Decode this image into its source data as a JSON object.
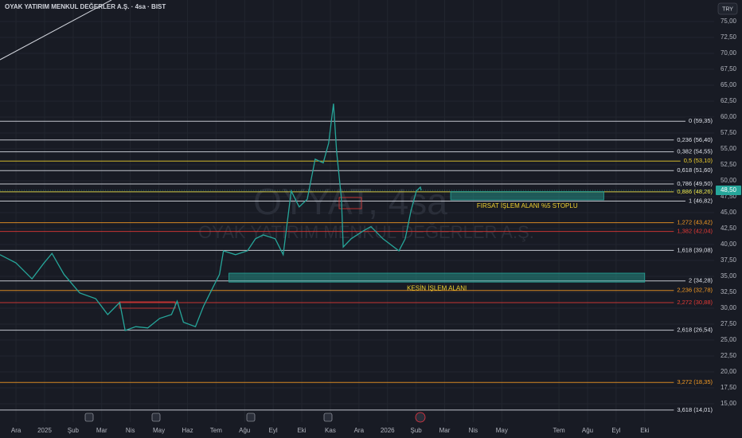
{
  "chart_data": {
    "type": "line",
    "title": "OYAK YATIRIM MENKUL DEĞERLER A.Ş. · 4sa · BIST",
    "currency": "TRY",
    "watermark": [
      "OYYAT, 4sa",
      "OYAK YATIRIM MENKUL DEĞERLER A.Ş."
    ],
    "xlim": [
      -0.56,
      24.43
    ],
    "ylim": [
      12.125,
      78.375
    ],
    "xticks": [
      {
        "value": 0,
        "label": "Ara"
      },
      {
        "value": 1,
        "label": "2025"
      },
      {
        "value": 2,
        "label": "Şub"
      },
      {
        "value": 3,
        "label": "Mar"
      },
      {
        "value": 4,
        "label": "Nis"
      },
      {
        "value": 5,
        "label": "May"
      },
      {
        "value": 6,
        "label": "Haz"
      },
      {
        "value": 7,
        "label": "Tem"
      },
      {
        "value": 8,
        "label": "Ağu"
      },
      {
        "value": 9,
        "label": "Eyl"
      },
      {
        "value": 10,
        "label": "Eki"
      },
      {
        "value": 11,
        "label": "Kas"
      },
      {
        "value": 12,
        "label": "Ara"
      },
      {
        "value": 13,
        "label": "2026"
      },
      {
        "value": 14,
        "label": "Şub"
      },
      {
        "value": 15,
        "label": "Mar"
      },
      {
        "value": 16,
        "label": "Nis"
      },
      {
        "value": 17,
        "label": "May"
      },
      {
        "value": 19,
        "label": "Tem"
      },
      {
        "value": 20,
        "label": "Ağu"
      },
      {
        "value": 21,
        "label": "Eyl"
      },
      {
        "value": 22,
        "label": "Eki"
      }
    ],
    "yticks": [
      {
        "value": 75,
        "label": "75,00"
      },
      {
        "value": 72.5,
        "label": "72,50"
      },
      {
        "value": 70,
        "label": "70,00"
      },
      {
        "value": 67.5,
        "label": "67,50"
      },
      {
        "value": 65,
        "label": "65,00"
      },
      {
        "value": 62.5,
        "label": "62,50"
      },
      {
        "value": 60,
        "label": "60,00"
      },
      {
        "value": 57.5,
        "label": "57,50"
      },
      {
        "value": 55,
        "label": "55,00"
      },
      {
        "value": 52.5,
        "label": "52,50"
      },
      {
        "value": 50,
        "label": "50,00"
      },
      {
        "value": 47.5,
        "label": "47,50"
      },
      {
        "value": 45,
        "label": "45,00"
      },
      {
        "value": 42.5,
        "label": "42,50"
      },
      {
        "value": 40,
        "label": "40,00"
      },
      {
        "value": 37.5,
        "label": "37,50"
      },
      {
        "value": 35,
        "label": "35,00"
      },
      {
        "value": 32.5,
        "label": "32,50"
      },
      {
        "value": 30,
        "label": "30,00"
      },
      {
        "value": 27.5,
        "label": "27,50"
      },
      {
        "value": 25,
        "label": "25,00"
      },
      {
        "value": 22.5,
        "label": "22,50"
      },
      {
        "value": 20,
        "label": "20,00"
      },
      {
        "value": 17.5,
        "label": "17,50"
      },
      {
        "value": 15,
        "label": "15,00"
      }
    ],
    "grid": true,
    "series": [
      {
        "name": "OYYAT",
        "color": "#26a69a",
        "x": [
          -0.56,
          0,
          0.56,
          0.98,
          1.26,
          1.68,
          2.23,
          2.79,
          3.21,
          3.63,
          3.82,
          4.19,
          4.61,
          5.03,
          5.44,
          5.64,
          5.86,
          6.28,
          6.56,
          6.84,
          7.12,
          7.26,
          7.68,
          8.1,
          8.38,
          8.65,
          9.07,
          9.35,
          9.63,
          9.91,
          10.19,
          10.47,
          10.75,
          10.94,
          11.11,
          11.22,
          11.39,
          11.45,
          11.73,
          12.14,
          12.42,
          12.84,
          13.4,
          13.62,
          13.82,
          14.01,
          14.15,
          14.18
        ],
        "values": [
          38.4,
          37.1,
          34.6,
          37.1,
          38.6,
          35.3,
          32.4,
          31.5,
          29.0,
          30.9,
          26.5,
          27.1,
          26.9,
          28.4,
          29.0,
          31.1,
          27.8,
          27.1,
          30.3,
          32.8,
          35.3,
          39.0,
          38.4,
          39.0,
          40.9,
          41.5,
          40.9,
          38.4,
          48.4,
          45.9,
          47.1,
          53.4,
          52.8,
          55.9,
          62.1,
          54.6,
          47.1,
          39.6,
          40.9,
          42.1,
          42.8,
          40.9,
          39.0,
          40.9,
          45.3,
          48.4,
          49.0,
          48.5
        ]
      }
    ],
    "last_price": {
      "value": 48.5,
      "label": "48,50",
      "color": "#26a69a"
    },
    "levels": [
      {
        "label": "0 (59,35)",
        "value": 59.35,
        "color": "#e0e3eb"
      },
      {
        "label": "0,236 (56,40)",
        "value": 56.4,
        "color": "#e0e3eb"
      },
      {
        "label": "0,382 (54,55)",
        "value": 54.55,
        "color": "#e0e3eb"
      },
      {
        "label": "0,5 (53,10)",
        "value": 53.1,
        "color": "#f2d22e"
      },
      {
        "label": "0,618 (51,60)",
        "value": 51.6,
        "color": "#e0e3eb"
      },
      {
        "label": "0,786 (49,50)",
        "value": 49.5,
        "color": "#e0e3eb"
      },
      {
        "label": "0,886 (48,26)",
        "value": 48.26,
        "color": "#f2e94e"
      },
      {
        "label": "1 (46,82)",
        "value": 46.82,
        "color": "#e0e3eb"
      },
      {
        "label": "1,272 (43,42)",
        "value": 43.42,
        "color": "#f59a23"
      },
      {
        "label": "1,382 (42,04)",
        "value": 42.04,
        "color": "#e53935"
      },
      {
        "label": "1,618 (39,08)",
        "value": 39.08,
        "color": "#e0e3eb"
      },
      {
        "label": "2 (34,28)",
        "value": 34.28,
        "color": "#e0e3eb"
      },
      {
        "label": "2,236 (32,78)",
        "value": 32.78,
        "color": "#f59a23"
      },
      {
        "label": "2,272 (30,88)",
        "value": 30.88,
        "color": "#e53935"
      },
      {
        "label": "2,618 (26,54)",
        "value": 26.54,
        "color": "#e0e3eb"
      },
      {
        "label": "3,272 (18,35)",
        "value": 18.35,
        "color": "#f59a23"
      },
      {
        "label": "3,618 (14,01)",
        "value": 14.01,
        "color": "#e0e3eb"
      }
    ],
    "zones": [
      {
        "label": "FIRSAT İŞLEM ALANI %5 STOPLU",
        "x": [
          15.21,
          20.57
        ],
        "range": [
          47.0,
          48.3
        ],
        "color": "#f2d22e"
      },
      {
        "label": "KESİN İŞLEM ALANI",
        "x": [
          7.45,
          22.0
        ],
        "range": [
          34.1,
          35.5
        ],
        "color": "#f2d22e"
      }
    ]
  }
}
